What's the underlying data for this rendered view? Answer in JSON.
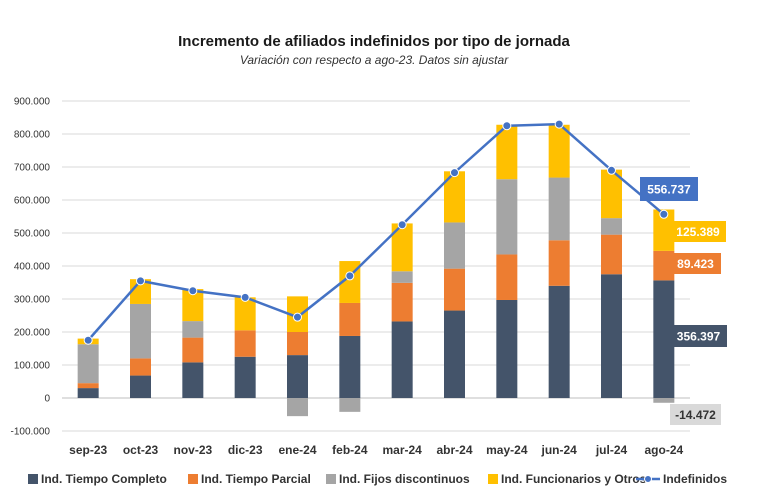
{
  "chart_data": {
    "type": "bar",
    "stacked": true,
    "title": "Incremento de afiliados indefinidos por tipo de jornada",
    "subtitle": "Variación con respecto a ago-23. Datos sin ajustar",
    "categories": [
      "sep-23",
      "oct-23",
      "nov-23",
      "dic-23",
      "ene-24",
      "feb-24",
      "mar-24",
      "abr-24",
      "may-24",
      "jun-24",
      "jul-24",
      "ago-24"
    ],
    "ylim": [
      -100000,
      900000
    ],
    "yticks": [
      -100000,
      0,
      100000,
      200000,
      300000,
      400000,
      500000,
      600000,
      700000,
      800000,
      900000
    ],
    "ytick_labels": [
      "-100.000",
      "0",
      "100.000",
      "200.000",
      "300.000",
      "400.000",
      "500.000",
      "600.000",
      "700.000",
      "800.000",
      "900.000"
    ],
    "grid": true,
    "legend": "bottom",
    "series": [
      {
        "name": "Ind. Tiempo Completo",
        "type": "bar",
        "color": "#44546A",
        "values": [
          30000,
          68000,
          108000,
          125000,
          130000,
          188000,
          232000,
          265000,
          297000,
          340000,
          375000,
          356397
        ]
      },
      {
        "name": "Ind. Tiempo Parcial",
        "type": "bar",
        "color": "#ED7D31",
        "values": [
          15000,
          52000,
          75000,
          80000,
          70000,
          100000,
          117000,
          127000,
          138000,
          138000,
          120000,
          89423
        ]
      },
      {
        "name": "Ind. Fijos discontinuos",
        "type": "bar",
        "color": "#A5A5A5",
        "values": [
          118000,
          165000,
          50000,
          0,
          -55000,
          -42000,
          35000,
          140000,
          228000,
          190000,
          50000,
          -14472
        ]
      },
      {
        "name": "Ind. Funcionarios y Otros",
        "type": "bar",
        "color": "#FFC000",
        "values": [
          17000,
          75000,
          97000,
          100000,
          108000,
          127000,
          145000,
          155000,
          165000,
          160000,
          147000,
          125389
        ]
      },
      {
        "name": "Indefinidos",
        "type": "line",
        "color": "#4472C4",
        "values": [
          175000,
          355000,
          325000,
          305000,
          245000,
          370000,
          525000,
          683000,
          825000,
          830000,
          690000,
          556737
        ]
      }
    ],
    "annotations": [
      {
        "text": "556.737",
        "series": "Indefinidos",
        "bg": "#4472C4",
        "color": "#ffffff"
      },
      {
        "text": "125.389",
        "series": "Ind. Funcionarios y Otros",
        "bg": "#FFC000",
        "color": "#ffffff"
      },
      {
        "text": "89.423",
        "series": "Ind. Tiempo Parcial",
        "bg": "#ED7D31",
        "color": "#ffffff"
      },
      {
        "text": "356.397",
        "series": "Ind. Tiempo Completo",
        "bg": "#44546A",
        "color": "#ffffff"
      },
      {
        "text": "-14.472",
        "series": "Ind. Fijos discontinuos",
        "bg": "#D9D9D9",
        "color": "#333333"
      }
    ]
  }
}
